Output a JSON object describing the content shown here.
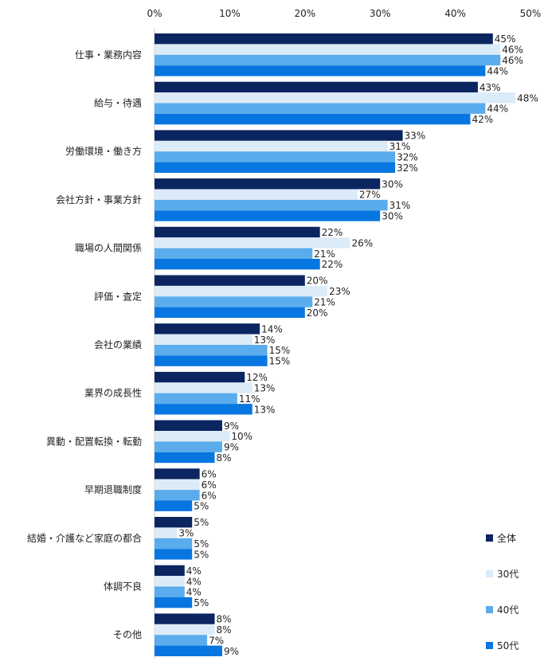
{
  "chart_data": {
    "type": "bar",
    "orientation": "horizontal",
    "title": "",
    "xlabel": "",
    "ylabel": "",
    "xlim": [
      0,
      50
    ],
    "ticks": [
      0,
      10,
      20,
      30,
      40,
      50
    ],
    "tick_suffix": "%",
    "legend_position": "bottom-right",
    "grid": false,
    "categories": [
      "仕事・業務内容",
      "給与・待遇",
      "労働環境・働き方",
      "会社方針・事業方針",
      "職場の人間関係",
      "評価・査定",
      "会社の業績",
      "業界の成長性",
      "異動・配置転換・転勤",
      "早期退職制度",
      "結婚・介護など家庭の都合",
      "体調不良",
      "その他"
    ],
    "series": [
      {
        "name": "全体",
        "color": "#0b2560",
        "values": [
          45,
          43,
          33,
          30,
          22,
          20,
          14,
          12,
          9,
          6,
          5,
          4,
          8
        ]
      },
      {
        "name": "30代",
        "color": "#dcebf8",
        "values": [
          46,
          48,
          31,
          27,
          26,
          23,
          13,
          13,
          10,
          6,
          3,
          4,
          8
        ]
      },
      {
        "name": "40代",
        "color": "#5aacec",
        "values": [
          46,
          44,
          32,
          31,
          21,
          21,
          15,
          11,
          9,
          6,
          5,
          4,
          7
        ]
      },
      {
        "name": "50代",
        "color": "#0876e0",
        "values": [
          44,
          42,
          32,
          30,
          22,
          20,
          15,
          13,
          8,
          5,
          5,
          5,
          9
        ]
      }
    ]
  }
}
